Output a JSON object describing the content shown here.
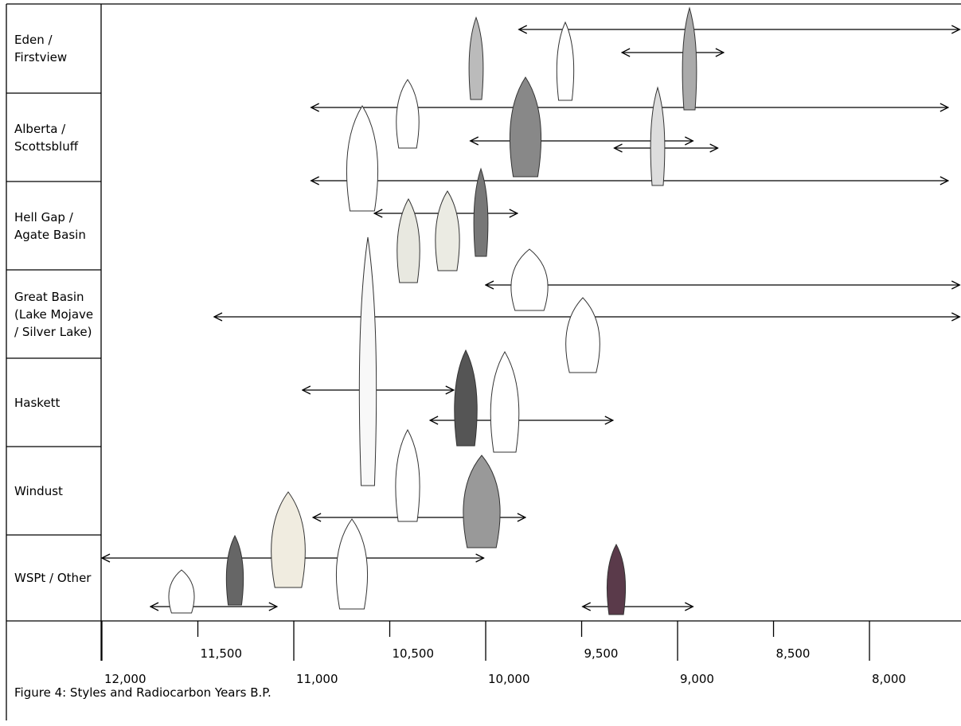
{
  "chart_data": {
    "type": "range",
    "caption": "Figure 4: Styles and Radiocarbon Years B.P.",
    "rows": [
      {
        "label": "Eden / Firstview",
        "ranges": [
          [
            9827,
            7530
          ],
          [
            9290,
            8760
          ]
        ]
      },
      {
        "label": "Alberta / Scottsbluff",
        "ranges": [
          [
            10910,
            7590
          ],
          [
            10080,
            8920
          ],
          [
            9330,
            8790
          ],
          [
            10910,
            7590
          ]
        ]
      },
      {
        "label": "Hell Gap / Agate Basin",
        "ranges": [
          [
            10580,
            9835
          ]
        ]
      },
      {
        "label": "Great Basin (Lake Mojave / Silver Lake)",
        "ranges": [
          [
            10000,
            7530
          ],
          [
            11415,
            7530
          ]
        ]
      },
      {
        "label": "Haskett",
        "ranges": [
          [
            10955,
            10167
          ],
          [
            10290,
            9337
          ]
        ]
      },
      {
        "label": "Windust",
        "ranges": [
          [
            10900,
            9793
          ]
        ]
      },
      {
        "label": "WSPt / Other",
        "ranges": [
          [
            12000,
            10010
          ],
          [
            11747,
            11088
          ],
          [
            9495,
            8920
          ]
        ]
      }
    ],
    "xlim": [
      12000,
      7523
    ],
    "xticks": [
      {
        "value": 12000,
        "label": "12,000"
      },
      {
        "value": 11500,
        "label": "11,500"
      },
      {
        "value": 11000,
        "label": "11,000"
      },
      {
        "value": 10500,
        "label": "10,500"
      },
      {
        "value": 10000,
        "label": "10,000"
      },
      {
        "value": 9500,
        "label": "9,500"
      },
      {
        "value": 9000,
        "label": "9,000"
      },
      {
        "value": 8500,
        "label": "8,500"
      },
      {
        "value": 8000,
        "label": "8,000"
      }
    ],
    "color": "#000000"
  }
}
